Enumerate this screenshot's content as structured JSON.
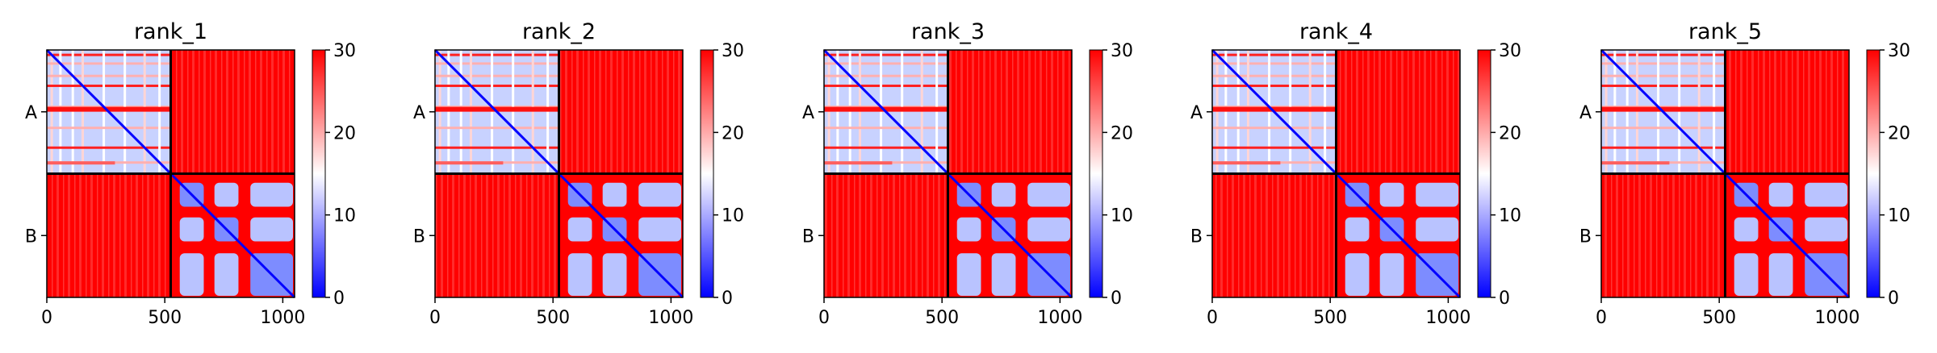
{
  "chart_data": [
    {
      "type": "heatmap",
      "title": "rank_1",
      "x_ticks": [
        "0",
        "500",
        "1000"
      ],
      "x_tick_values": [
        0,
        500,
        1000
      ],
      "xlim": [
        0,
        1050
      ],
      "y_ticks": [
        "A",
        "B"
      ],
      "chain_boundaries": [
        0,
        525,
        1050
      ],
      "colorbar": {
        "ticks": [
          "0",
          "10",
          "20",
          "30"
        ],
        "range": [
          0,
          30
        ],
        "colormap": "bwr"
      },
      "blocks": {
        "A_A": "mostly low (blue/white) with red stripes",
        "B_B": "low (blue) subdomains separated by red bands",
        "A_B": "high (red)",
        "B_A": "high (red)"
      }
    },
    {
      "type": "heatmap",
      "title": "rank_2",
      "x_ticks": [
        "0",
        "500",
        "1000"
      ],
      "x_tick_values": [
        0,
        500,
        1000
      ],
      "xlim": [
        0,
        1050
      ],
      "y_ticks": [
        "A",
        "B"
      ],
      "chain_boundaries": [
        0,
        525,
        1050
      ],
      "colorbar": {
        "ticks": [
          "0",
          "10",
          "20",
          "30"
        ],
        "range": [
          0,
          30
        ],
        "colormap": "bwr"
      },
      "blocks": {
        "A_A": "mostly low (blue/white) with red stripes",
        "B_B": "low (blue) subdomains separated by red bands",
        "A_B": "high (red)",
        "B_A": "high (red)"
      }
    },
    {
      "type": "heatmap",
      "title": "rank_3",
      "x_ticks": [
        "0",
        "500",
        "1000"
      ],
      "x_tick_values": [
        0,
        500,
        1000
      ],
      "xlim": [
        0,
        1050
      ],
      "y_ticks": [
        "A",
        "B"
      ],
      "chain_boundaries": [
        0,
        525,
        1050
      ],
      "colorbar": {
        "ticks": [
          "0",
          "10",
          "20",
          "30"
        ],
        "range": [
          0,
          30
        ],
        "colormap": "bwr"
      },
      "blocks": {
        "A_A": "mostly low (blue/white) with red stripes",
        "B_B": "low (blue) subdomains separated by red bands",
        "A_B": "high (red)",
        "B_A": "high (red)"
      }
    },
    {
      "type": "heatmap",
      "title": "rank_4",
      "x_ticks": [
        "0",
        "500",
        "1000"
      ],
      "x_tick_values": [
        0,
        500,
        1000
      ],
      "xlim": [
        0,
        1050
      ],
      "y_ticks": [
        "A",
        "B"
      ],
      "chain_boundaries": [
        0,
        525,
        1050
      ],
      "colorbar": {
        "ticks": [
          "0",
          "10",
          "20",
          "30"
        ],
        "range": [
          0,
          30
        ],
        "colormap": "bwr"
      },
      "blocks": {
        "A_A": "mostly low (blue/white) with red stripes",
        "B_B": "low (blue) subdomains separated by red bands",
        "A_B": "high (red)",
        "B_A": "high (red)"
      }
    },
    {
      "type": "heatmap",
      "title": "rank_5",
      "x_ticks": [
        "0",
        "500",
        "1000"
      ],
      "x_tick_values": [
        0,
        500,
        1000
      ],
      "xlim": [
        0,
        1050
      ],
      "y_ticks": [
        "A",
        "B"
      ],
      "chain_boundaries": [
        0,
        525,
        1050
      ],
      "colorbar": {
        "ticks": [
          "0",
          "10",
          "20",
          "30"
        ],
        "range": [
          0,
          30
        ],
        "colormap": "bwr"
      },
      "blocks": {
        "A_A": "mostly low (blue/white) with red stripes",
        "B_B": "low (blue) subdomains separated by red bands",
        "A_B": "high (red)",
        "B_A": "high (red)"
      }
    }
  ],
  "colors": {
    "low": "#0000ff",
    "mid": "#ffffff",
    "high": "#ff0000",
    "frame": "#000000"
  }
}
